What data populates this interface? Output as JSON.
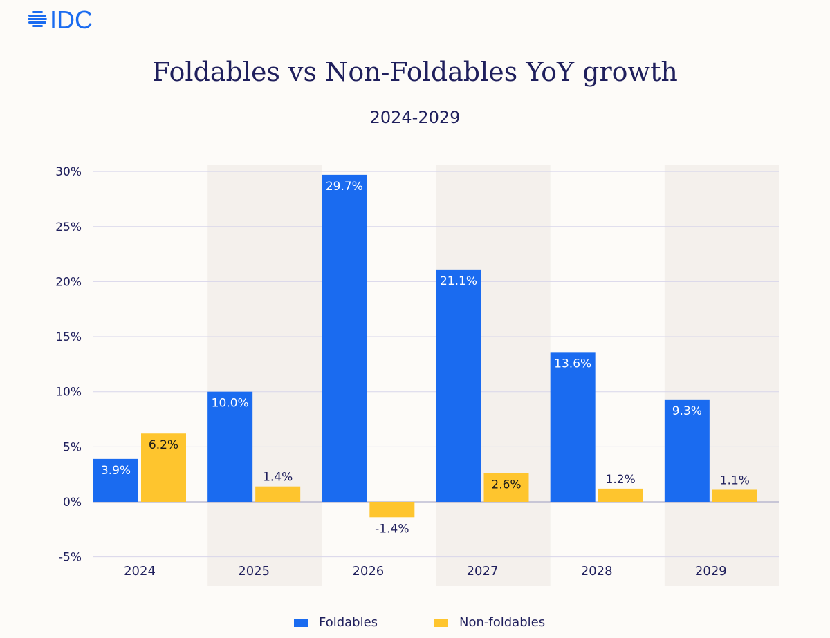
{
  "logo_text": "IDC",
  "chart_data": {
    "type": "bar",
    "title": "Foldables vs Non-Foldables YoY growth",
    "subtitle": "2024-2029",
    "categories": [
      "2024",
      "2025",
      "2026",
      "2027",
      "2028",
      "2029"
    ],
    "series": [
      {
        "name": "Foldables",
        "color": "#1a6bf0",
        "values": [
          3.9,
          10.0,
          29.7,
          21.1,
          13.6,
          9.3
        ],
        "labels": [
          "3.9%",
          "10.0%",
          "29.7%",
          "21.1%",
          "13.6%",
          "9.3%"
        ]
      },
      {
        "name": "Non-foldables",
        "color": "#fec52e",
        "values": [
          6.2,
          1.4,
          -1.4,
          2.6,
          1.2,
          1.1
        ],
        "labels": [
          "6.2%",
          "1.4%",
          "-1.4%",
          "2.6%",
          "1.2%",
          "1.1%"
        ]
      }
    ],
    "yticks": [
      -5,
      0,
      5,
      10,
      15,
      20,
      25,
      30
    ],
    "ytick_labels": [
      "-5%",
      "0%",
      "5%",
      "10%",
      "15%",
      "20%",
      "25%",
      "30%"
    ],
    "ylim": [
      -5,
      30
    ],
    "grid": true,
    "legend_position": "bottom",
    "shaded_categories": [
      "2025",
      "2027",
      "2029"
    ]
  }
}
